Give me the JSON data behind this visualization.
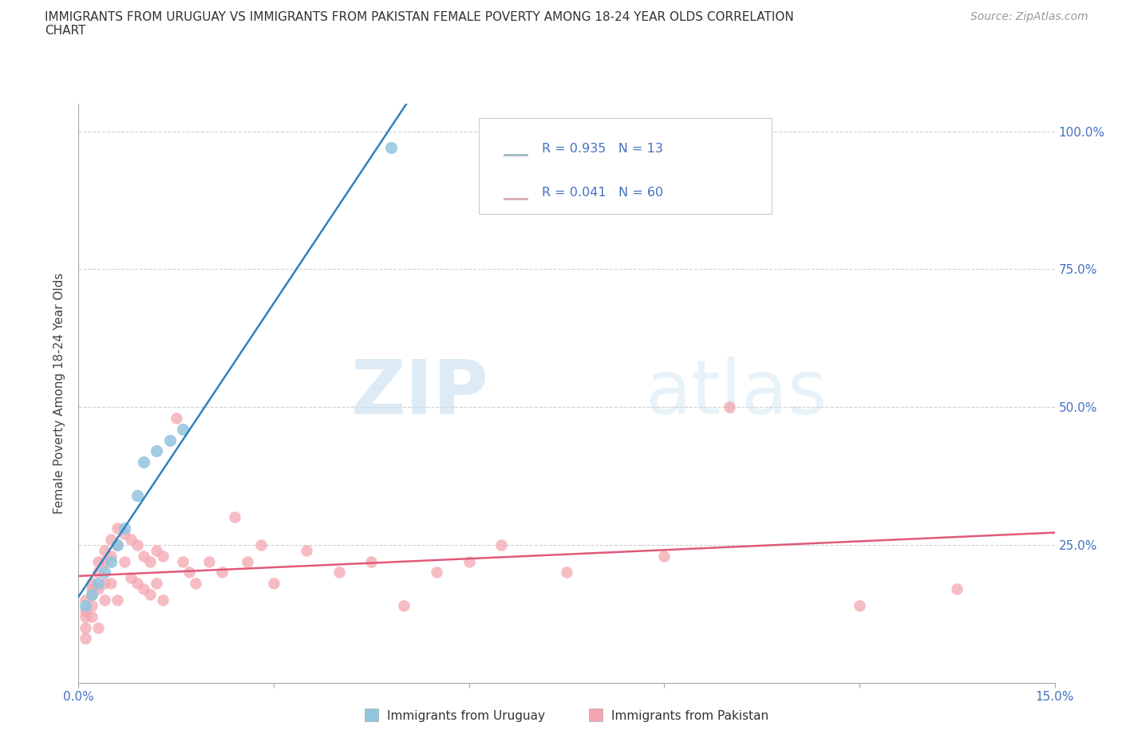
{
  "title_line1": "IMMIGRANTS FROM URUGUAY VS IMMIGRANTS FROM PAKISTAN FEMALE POVERTY AMONG 18-24 YEAR OLDS CORRELATION",
  "title_line2": "CHART",
  "source_text": "Source: ZipAtlas.com",
  "ylabel": "Female Poverty Among 18-24 Year Olds",
  "xlim": [
    0.0,
    0.15
  ],
  "ylim": [
    0.0,
    1.05
  ],
  "xticks": [
    0.0,
    0.03,
    0.06,
    0.09,
    0.12,
    0.15
  ],
  "xticklabels": [
    "0.0%",
    "",
    "",
    "",
    "",
    "15.0%"
  ],
  "yticks": [
    0.0,
    0.25,
    0.5,
    0.75,
    1.0
  ],
  "yticklabels": [
    "",
    "25.0%",
    "50.0%",
    "75.0%",
    "100.0%"
  ],
  "watermark_zip": "ZIP",
  "watermark_atlas": "atlas",
  "uruguay_color": "#92c5de",
  "pakistan_color": "#f4a6b0",
  "uruguay_line_color": "#3182bd",
  "pakistan_line_color": "#e05a7a",
  "R_uruguay": 0.935,
  "N_uruguay": 13,
  "R_pakistan": 0.041,
  "N_pakistan": 60,
  "legend_label_uruguay": "Immigrants from Uruguay",
  "legend_label_pakistan": "Immigrants from Pakistan",
  "uruguay_x": [
    0.001,
    0.002,
    0.003,
    0.004,
    0.005,
    0.006,
    0.007,
    0.009,
    0.01,
    0.012,
    0.014,
    0.016,
    0.048
  ],
  "uruguay_y": [
    0.14,
    0.16,
    0.18,
    0.2,
    0.22,
    0.25,
    0.28,
    0.34,
    0.4,
    0.42,
    0.44,
    0.46,
    0.97
  ],
  "pakistan_x": [
    0.001,
    0.001,
    0.001,
    0.001,
    0.001,
    0.002,
    0.002,
    0.002,
    0.002,
    0.002,
    0.003,
    0.003,
    0.003,
    0.003,
    0.004,
    0.004,
    0.004,
    0.004,
    0.005,
    0.005,
    0.005,
    0.006,
    0.006,
    0.006,
    0.007,
    0.007,
    0.008,
    0.008,
    0.009,
    0.009,
    0.01,
    0.01,
    0.011,
    0.011,
    0.012,
    0.012,
    0.013,
    0.013,
    0.015,
    0.016,
    0.017,
    0.018,
    0.02,
    0.022,
    0.024,
    0.026,
    0.028,
    0.03,
    0.035,
    0.04,
    0.045,
    0.05,
    0.055,
    0.06,
    0.065,
    0.075,
    0.09,
    0.1,
    0.12,
    0.135
  ],
  "pakistan_y": [
    0.15,
    0.13,
    0.12,
    0.1,
    0.08,
    0.18,
    0.17,
    0.16,
    0.14,
    0.12,
    0.22,
    0.2,
    0.17,
    0.1,
    0.24,
    0.22,
    0.18,
    0.15,
    0.26,
    0.23,
    0.18,
    0.28,
    0.25,
    0.15,
    0.27,
    0.22,
    0.26,
    0.19,
    0.25,
    0.18,
    0.23,
    0.17,
    0.22,
    0.16,
    0.24,
    0.18,
    0.23,
    0.15,
    0.48,
    0.22,
    0.2,
    0.18,
    0.22,
    0.2,
    0.3,
    0.22,
    0.25,
    0.18,
    0.24,
    0.2,
    0.22,
    0.14,
    0.2,
    0.22,
    0.25,
    0.2,
    0.23,
    0.5,
    0.14,
    0.17
  ]
}
